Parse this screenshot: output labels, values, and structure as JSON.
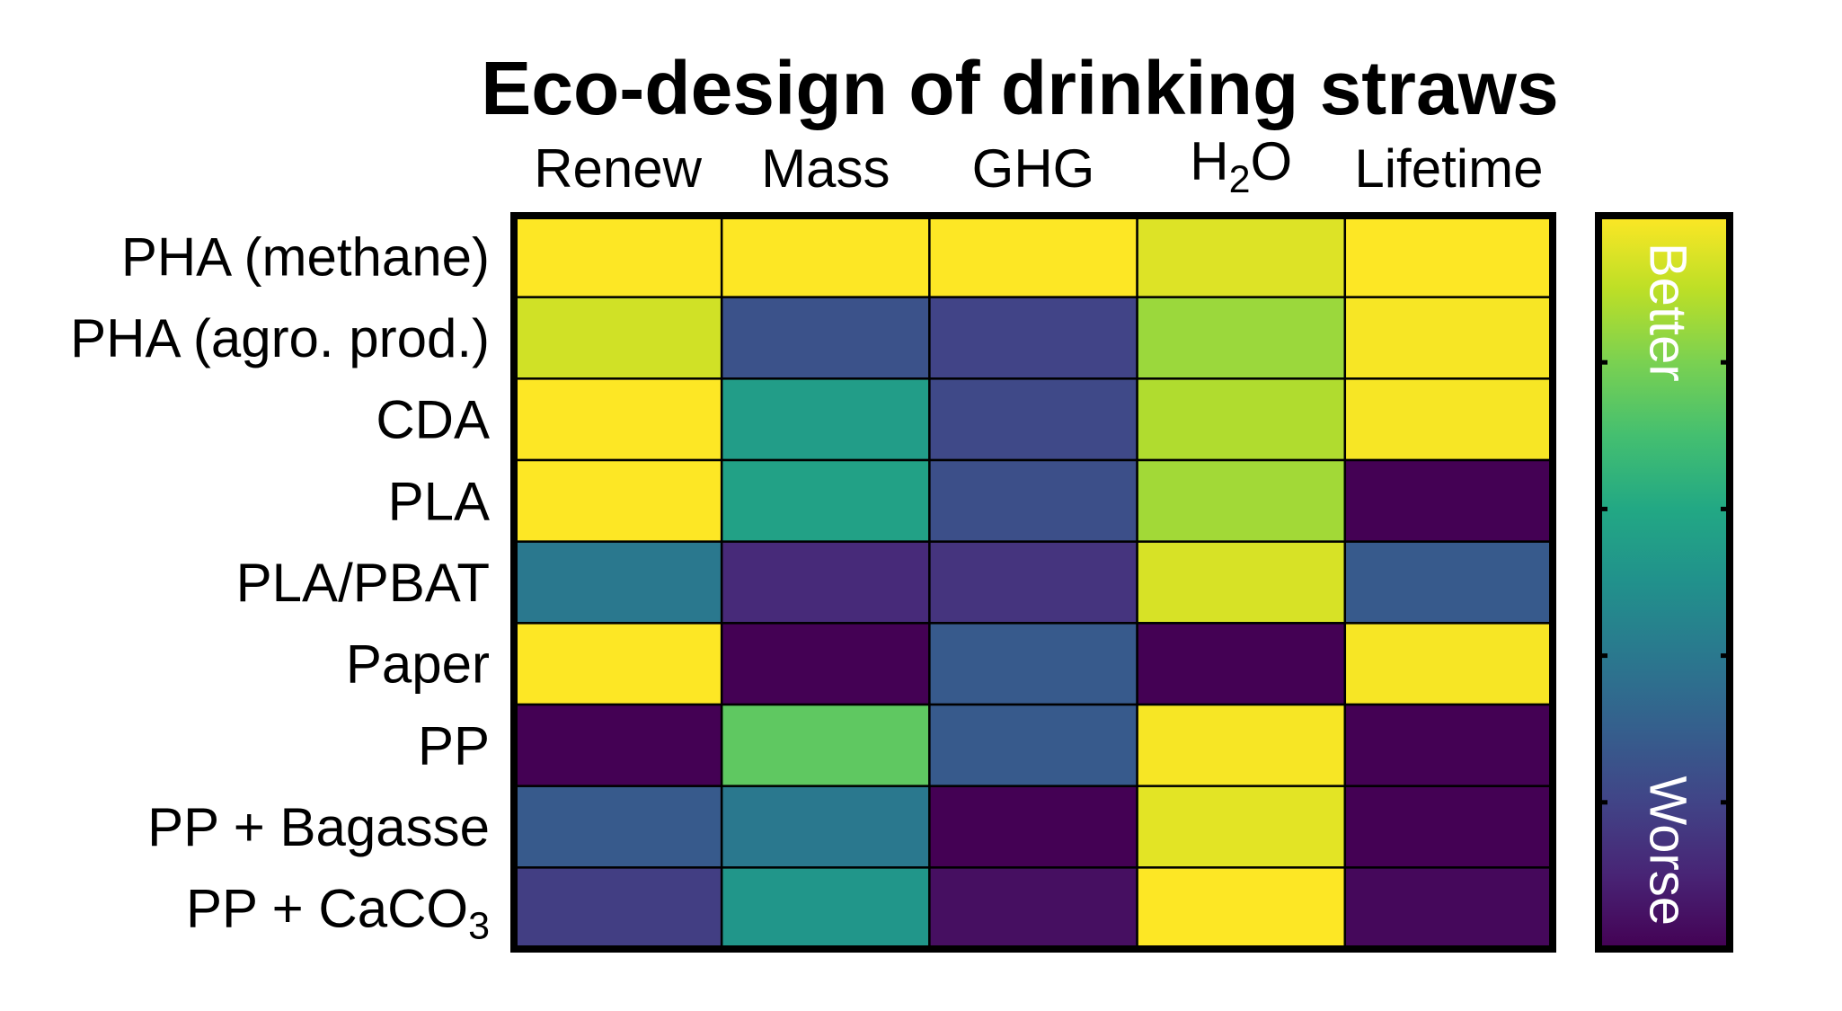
{
  "chart_data": {
    "type": "heatmap",
    "title": "Eco-design of drinking straws",
    "columns": [
      "Renew",
      "Mass",
      "GHG",
      "H2O",
      "Lifetime"
    ],
    "rows": [
      "PHA (methane)",
      "PHA (agro. prod.)",
      "CDA",
      "PLA",
      "PLA/PBAT",
      "Paper",
      "PP",
      "PP + Bagasse",
      "PP + CaCO3"
    ],
    "values": [
      [
        1.0,
        1.0,
        1.0,
        0.95,
        1.0
      ],
      [
        0.93,
        0.25,
        0.2,
        0.85,
        0.99
      ],
      [
        1.0,
        0.55,
        0.22,
        0.88,
        0.99
      ],
      [
        1.0,
        0.57,
        0.24,
        0.86,
        0.0
      ],
      [
        0.4,
        0.12,
        0.15,
        0.94,
        0.28
      ],
      [
        1.0,
        0.0,
        0.28,
        0.0,
        0.99
      ],
      [
        0.0,
        0.75,
        0.28,
        0.99,
        0.0
      ],
      [
        0.28,
        0.4,
        0.0,
        0.96,
        0.0
      ],
      [
        0.18,
        0.52,
        0.04,
        1.0,
        0.02
      ]
    ],
    "value_range": [
      0,
      1
    ],
    "colormap": "viridis",
    "colorbar": {
      "high_label": "Better",
      "low_label": "Worse"
    },
    "colors": {
      "high": "#fde725",
      "low": "#440154",
      "border": "#000000"
    }
  }
}
